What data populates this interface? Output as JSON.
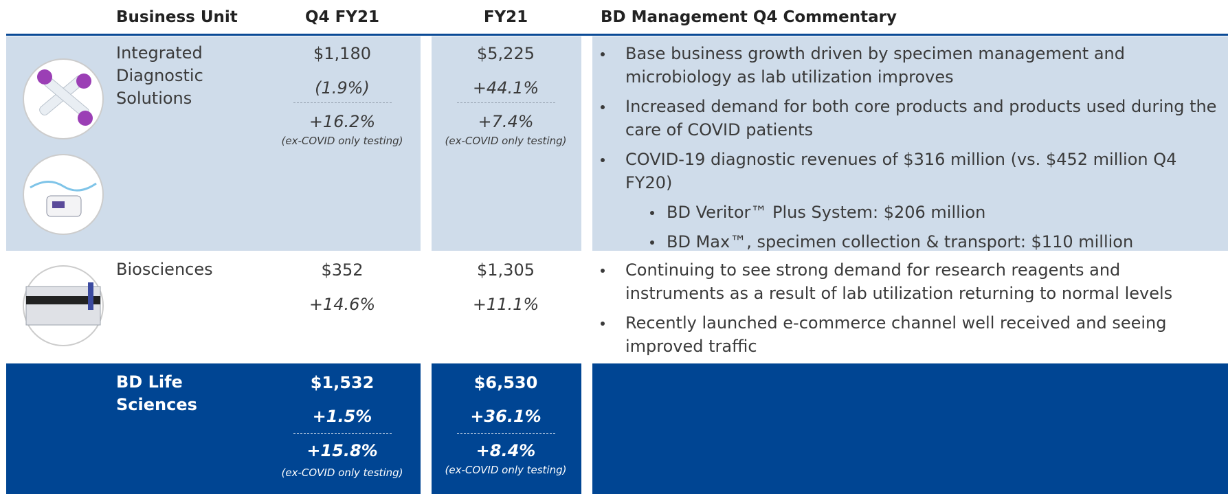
{
  "header": {
    "columns": [
      "Business Unit",
      "Q4 FY21",
      "FY21",
      "BD Management Q4 Commentary"
    ]
  },
  "rows": [
    {
      "unit": "Integrated Diagnostic Solutions",
      "q4": {
        "revenue": "$1,180",
        "growth": "(1.9%)",
        "ex_covid_growth": "+16.2%",
        "ex_covid_note": "(ex-COVID only testing)"
      },
      "fy": {
        "revenue": "$5,225",
        "growth": "+44.1%",
        "ex_covid_growth": "+7.4%",
        "ex_covid_note": "(ex-COVID only testing)"
      },
      "commentary": [
        "Base business growth driven by specimen management and microbiology as lab utilization improves",
        "Increased demand for both core products and products used during the care of COVID patients",
        "COVID-19 diagnostic revenues of $316 million (vs. $452 million Q4 FY20)"
      ],
      "commentary_sub": [
        "BD Veritor™ Plus System: $206 million",
        "BD Max™, specimen collection & transport: $110 million"
      ]
    },
    {
      "unit": "Biosciences",
      "q4": {
        "revenue": "$352",
        "growth": "+14.6%"
      },
      "fy": {
        "revenue": "$1,305",
        "growth": "+11.1%"
      },
      "commentary": [
        "Continuing to see strong demand for research reagents and instruments as a result of lab utilization returning to normal levels",
        "Recently launched e-commerce channel well received and seeing improved traffic"
      ]
    },
    {
      "unit": "BD Life Sciences",
      "q4": {
        "revenue": "$1,532",
        "growth": "+1.5%",
        "ex_covid_growth": "+15.8%",
        "ex_covid_note": "(ex-COVID only testing)"
      },
      "fy": {
        "revenue": "$6,530",
        "growth": "+36.1%",
        "ex_covid_growth": "+8.4%",
        "ex_covid_note": "(ex-COVID only testing)"
      }
    }
  ]
}
